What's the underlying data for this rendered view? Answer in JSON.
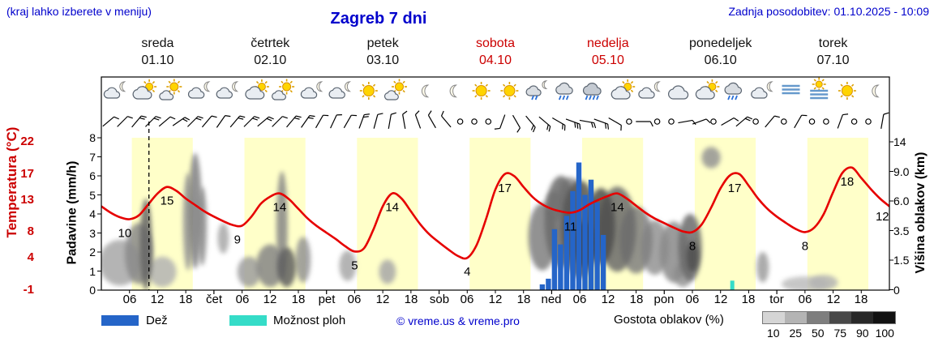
{
  "header": {
    "hint": "(kraj lahko izberete v meniju)",
    "title": "Zagreb 7 dni",
    "updated": "Zadnja posodobitev: 01.10.2025 - 10:09"
  },
  "colors": {
    "blue_text": "#0000cc",
    "temp_axis": "#cc0000",
    "temp_line": "#e60000",
    "rain_bar": "#2565c8",
    "shower_bar": "#35dcc8",
    "day_band": "#ffffc9",
    "weekend_day": "#cc0000",
    "weekday_day": "#111111"
  },
  "days": [
    {
      "name": "sreda",
      "date": "01.10",
      "color": "#111111"
    },
    {
      "name": "četrtek",
      "date": "02.10",
      "color": "#111111"
    },
    {
      "name": "petek",
      "date": "03.10",
      "color": "#111111"
    },
    {
      "name": "sobota",
      "date": "04.10",
      "color": "#cc0000"
    },
    {
      "name": "nedelja",
      "date": "05.10",
      "color": "#cc0000"
    },
    {
      "name": "ponedeljek",
      "date": "06.10",
      "color": "#111111"
    },
    {
      "name": "torek",
      "date": "07.10",
      "color": "#111111"
    }
  ],
  "axes": {
    "temp": {
      "label": "Temperatura (°C)",
      "ticks": [
        22,
        17,
        13,
        8,
        4,
        -1
      ],
      "range": [
        -1,
        22
      ]
    },
    "precip": {
      "label": "Padavine (mm/h)",
      "ticks": [
        8,
        7,
        6,
        5,
        4,
        3,
        2,
        1,
        0
      ],
      "range": [
        0,
        8
      ]
    },
    "cloud_height": {
      "label": "Višina oblakov (km)",
      "ticks": [
        "14",
        "9.0",
        "6.0",
        "3.5",
        "1.5",
        "0"
      ]
    },
    "time": {
      "hour_labels": [
        "06",
        "12",
        "18"
      ],
      "boundary_labels": [
        "čet",
        "pet",
        "sob",
        "ned",
        "pon",
        "tor"
      ]
    }
  },
  "legend": {
    "rain_label": "Dež",
    "shower_label": "Možnost ploh",
    "copyright": "© vreme.us & vreme.pro",
    "cloud_density_label": "Gostota oblakov (%)",
    "cloud_density_ticks": [
      "10",
      "25",
      "50",
      "75",
      "90",
      "100"
    ]
  },
  "chart_data": {
    "type": "line",
    "title": "Zagreb 7 dni",
    "x_unit": "hours from 01.10 00:00",
    "x_range": [
      0,
      168
    ],
    "now_hour": 10.15,
    "day_band_hours": [
      6.5,
      19.5
    ],
    "temperature_c": {
      "unit": "°C",
      "points": [
        [
          0,
          12
        ],
        [
          2,
          11
        ],
        [
          4,
          10.3
        ],
        [
          6,
          10
        ],
        [
          8,
          10.6
        ],
        [
          10,
          12.3
        ],
        [
          12,
          14
        ],
        [
          14,
          15
        ],
        [
          16,
          14.4
        ],
        [
          18,
          13.2
        ],
        [
          20,
          12.2
        ],
        [
          22,
          11.2
        ],
        [
          24,
          10.4
        ],
        [
          26,
          9.7
        ],
        [
          28,
          9.1
        ],
        [
          30,
          9
        ],
        [
          32,
          10.4
        ],
        [
          34,
          12.4
        ],
        [
          36,
          13.5
        ],
        [
          38,
          14
        ],
        [
          40,
          13.1
        ],
        [
          42,
          11.6
        ],
        [
          44,
          10.1
        ],
        [
          46,
          8.9
        ],
        [
          48,
          7.9
        ],
        [
          50,
          6.9
        ],
        [
          52,
          5.8
        ],
        [
          54,
          5
        ],
        [
          56,
          5.5
        ],
        [
          58,
          8.4
        ],
        [
          60,
          12
        ],
        [
          62,
          14
        ],
        [
          64,
          13.2
        ],
        [
          66,
          11.2
        ],
        [
          68,
          9.2
        ],
        [
          70,
          7.6
        ],
        [
          72,
          6.4
        ],
        [
          74,
          5.3
        ],
        [
          76,
          4.3
        ],
        [
          78,
          4
        ],
        [
          80,
          6
        ],
        [
          82,
          10
        ],
        [
          84,
          14.6
        ],
        [
          86,
          17
        ],
        [
          88,
          16.7
        ],
        [
          90,
          15
        ],
        [
          92,
          13.4
        ],
        [
          94,
          12.3
        ],
        [
          96,
          11.6
        ],
        [
          98,
          11.2
        ],
        [
          100,
          11
        ],
        [
          102,
          11.4
        ],
        [
          104,
          12.3
        ],
        [
          106,
          13
        ],
        [
          108,
          13.6
        ],
        [
          110,
          14
        ],
        [
          112,
          13.2
        ],
        [
          114,
          12.1
        ],
        [
          116,
          11
        ],
        [
          118,
          10.1
        ],
        [
          120,
          9.4
        ],
        [
          122,
          8.7
        ],
        [
          124,
          8.1
        ],
        [
          126,
          8
        ],
        [
          128,
          9.2
        ],
        [
          130,
          11.8
        ],
        [
          132,
          14.8
        ],
        [
          134,
          16.8
        ],
        [
          136,
          17
        ],
        [
          138,
          15.2
        ],
        [
          140,
          13.2
        ],
        [
          142,
          11.6
        ],
        [
          144,
          10.4
        ],
        [
          146,
          9.4
        ],
        [
          148,
          8.5
        ],
        [
          150,
          8
        ],
        [
          152,
          8.7
        ],
        [
          154,
          10.8
        ],
        [
          156,
          14.2
        ],
        [
          158,
          17.2
        ],
        [
          160,
          18
        ],
        [
          162,
          16.4
        ],
        [
          164,
          14.7
        ],
        [
          166,
          13.2
        ],
        [
          168,
          12
        ]
      ]
    },
    "temp_point_labels": [
      [
        5,
        10,
        "10"
      ],
      [
        14,
        15,
        "15"
      ],
      [
        29,
        9,
        "9"
      ],
      [
        38,
        14,
        "14"
      ],
      [
        54,
        5,
        "5"
      ],
      [
        62,
        14,
        "14"
      ],
      [
        78,
        4,
        "4"
      ],
      [
        86,
        17,
        "17"
      ],
      [
        100,
        11,
        "11"
      ],
      [
        110,
        14,
        "14"
      ],
      [
        126,
        8,
        "8"
      ],
      [
        135,
        17,
        "17"
      ],
      [
        150,
        8,
        "8"
      ],
      [
        159,
        18,
        "18"
      ],
      [
        166.5,
        12.6,
        "12"
      ]
    ],
    "rain_mm_h": [
      [
        94,
        0.3
      ],
      [
        95.3,
        0.6
      ],
      [
        96.6,
        3.2
      ],
      [
        97.9,
        2.4
      ],
      [
        99.2,
        3.9
      ],
      [
        100.5,
        5.2
      ],
      [
        101.8,
        6.7
      ],
      [
        103.1,
        5.0
      ],
      [
        104.4,
        5.8
      ],
      [
        105.7,
        4.6
      ],
      [
        107,
        2.9
      ]
    ],
    "shower_mm_h": [
      [
        134.5,
        0.5
      ]
    ],
    "cloud_blobs": [
      [
        4,
        0.18,
        4.5,
        0.15,
        35
      ],
      [
        8,
        0.24,
        3,
        0.2,
        50
      ],
      [
        9.5,
        0.3,
        1.3,
        0.3,
        68
      ],
      [
        13,
        0.12,
        3,
        0.1,
        30
      ],
      [
        18.5,
        0.45,
        1.1,
        0.32,
        45
      ],
      [
        20,
        0.52,
        1.4,
        0.38,
        55
      ],
      [
        21.5,
        0.42,
        1,
        0.26,
        48
      ],
      [
        26,
        0.34,
        1.2,
        0.1,
        35
      ],
      [
        31.5,
        0.12,
        2.5,
        0.1,
        40
      ],
      [
        36,
        0.16,
        3,
        0.14,
        52
      ],
      [
        38.5,
        0.42,
        1.2,
        0.36,
        52
      ],
      [
        39.5,
        0.15,
        2,
        0.13,
        70
      ],
      [
        43,
        0.2,
        1.6,
        0.15,
        45
      ],
      [
        52.5,
        0.16,
        1.8,
        0.1,
        35
      ],
      [
        61,
        0.12,
        1.8,
        0.08,
        35
      ],
      [
        94,
        0.35,
        3,
        0.22,
        55
      ],
      [
        96.5,
        0.55,
        2,
        0.1,
        40
      ],
      [
        98,
        0.45,
        3.5,
        0.3,
        65
      ],
      [
        100,
        0.62,
        2.5,
        0.12,
        45
      ],
      [
        102,
        0.4,
        4,
        0.32,
        75
      ],
      [
        103,
        0.3,
        2.5,
        0.15,
        88
      ],
      [
        106.5,
        0.42,
        3,
        0.25,
        80
      ],
      [
        110,
        0.4,
        4,
        0.28,
        65
      ],
      [
        114,
        0.33,
        3.5,
        0.22,
        55
      ],
      [
        118,
        0.28,
        3,
        0.18,
        45
      ],
      [
        122,
        0.25,
        3,
        0.2,
        50
      ],
      [
        124,
        0.1,
        2,
        0.08,
        45
      ],
      [
        125.5,
        0.28,
        2.5,
        0.22,
        65
      ],
      [
        126,
        0.22,
        1.3,
        0.1,
        80
      ],
      [
        130,
        0.87,
        2,
        0.07,
        45
      ],
      [
        141,
        0.15,
        1.3,
        0.1,
        40
      ],
      [
        150,
        0.04,
        5,
        0.05,
        25
      ],
      [
        154,
        0.05,
        3,
        0.05,
        30
      ]
    ],
    "weather_icons": [
      "cloud-moon",
      "cloud-sun",
      "sun-cloud",
      "cloud-moon",
      "cloud-moon",
      "cloud-sun",
      "sun-cloud",
      "cloud-moon",
      "cloud-moon",
      "sun",
      "sun-cloud",
      "moon",
      "moon",
      "sun",
      "sun",
      "rain-moon",
      "rain",
      "heavy-rain",
      "cloud-sun",
      "cloud-moon",
      "cloud",
      "cloud-sun",
      "rain",
      "cloud-moon",
      "fog",
      "fog-sun",
      "sun",
      "moon"
    ],
    "wind_barbs": [
      [
        50,
        1
      ],
      [
        45,
        1
      ],
      [
        40,
        2
      ],
      [
        45,
        2
      ],
      [
        50,
        1
      ],
      [
        55,
        2
      ],
      [
        45,
        2
      ],
      [
        40,
        1
      ],
      [
        35,
        1
      ],
      [
        40,
        2
      ],
      [
        45,
        2
      ],
      [
        50,
        2
      ],
      [
        45,
        1
      ],
      [
        40,
        2
      ],
      [
        35,
        2
      ],
      [
        30,
        1
      ],
      [
        25,
        1
      ],
      [
        30,
        1
      ],
      [
        20,
        2
      ],
      [
        15,
        1
      ],
      [
        10,
        1
      ],
      [
        350,
        1
      ],
      [
        340,
        1
      ],
      [
        330,
        1
      ],
      [
        320,
        1
      ],
      0,
      0,
      0,
      [
        200,
        1
      ],
      [
        150,
        1
      ],
      [
        140,
        2
      ],
      [
        130,
        2
      ],
      [
        120,
        2
      ],
      [
        110,
        3
      ],
      [
        100,
        2
      ],
      [
        110,
        2
      ],
      [
        120,
        1
      ],
      0,
      [
        90,
        1
      ],
      0,
      0,
      [
        80,
        1
      ],
      [
        70,
        1
      ],
      0,
      [
        60,
        1
      ],
      [
        50,
        2
      ],
      0,
      [
        40,
        1
      ],
      0,
      [
        30,
        1
      ],
      0,
      0,
      [
        20,
        1
      ],
      0,
      0,
      [
        10,
        1
      ]
    ]
  }
}
